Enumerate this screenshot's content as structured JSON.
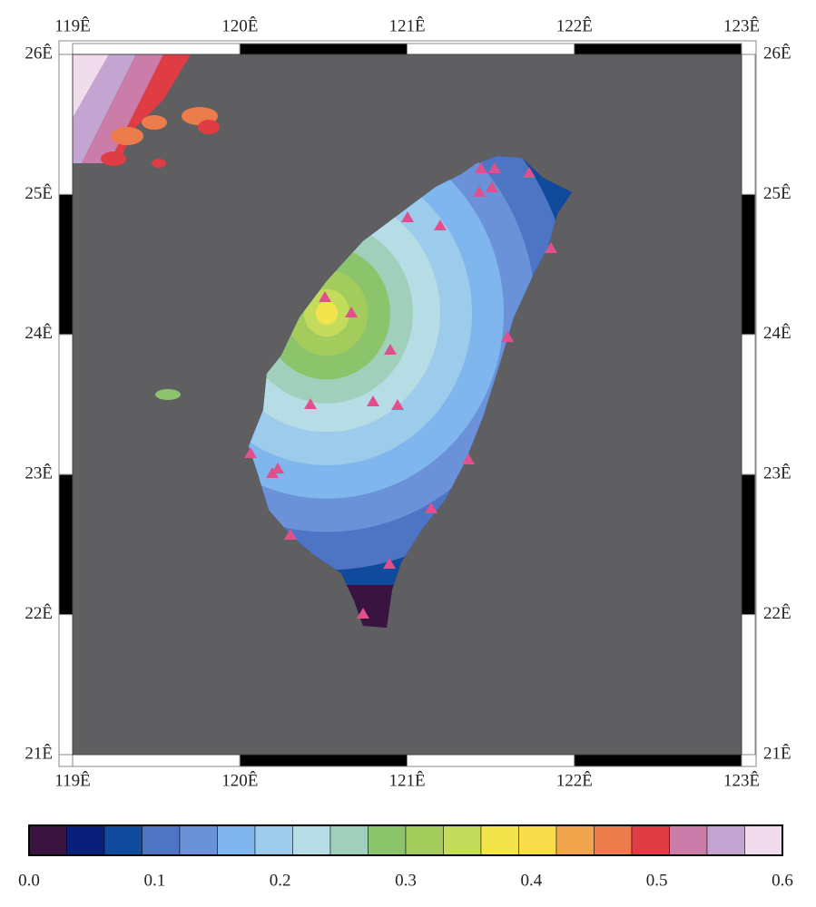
{
  "map": {
    "lon_labels": [
      "119Ê",
      "120Ê",
      "121Ê",
      "122Ê",
      "123Ê"
    ],
    "lat_labels": [
      "26Ê",
      "25Ê",
      "24Ê",
      "23Ê",
      "22Ê",
      "21Ê"
    ]
  },
  "colorbar": {
    "colors": [
      "#3a1440",
      "#0a1f7a",
      "#0f4a9c",
      "#4e74c4",
      "#6b92d8",
      "#7fb6ee",
      "#9ccbeb",
      "#b6dde6",
      "#a0d0bc",
      "#8cc46c",
      "#a4cc5c",
      "#c4dc5c",
      "#f4e44c",
      "#f8dc4c",
      "#f0a44c",
      "#ec7c4c",
      "#e03c44",
      "#cc7ca8",
      "#c4a4d0",
      "#f0dcec"
    ],
    "labels": [
      "0.0",
      "0.1",
      "0.2",
      "0.3",
      "0.4",
      "0.5",
      "0.6"
    ]
  }
}
